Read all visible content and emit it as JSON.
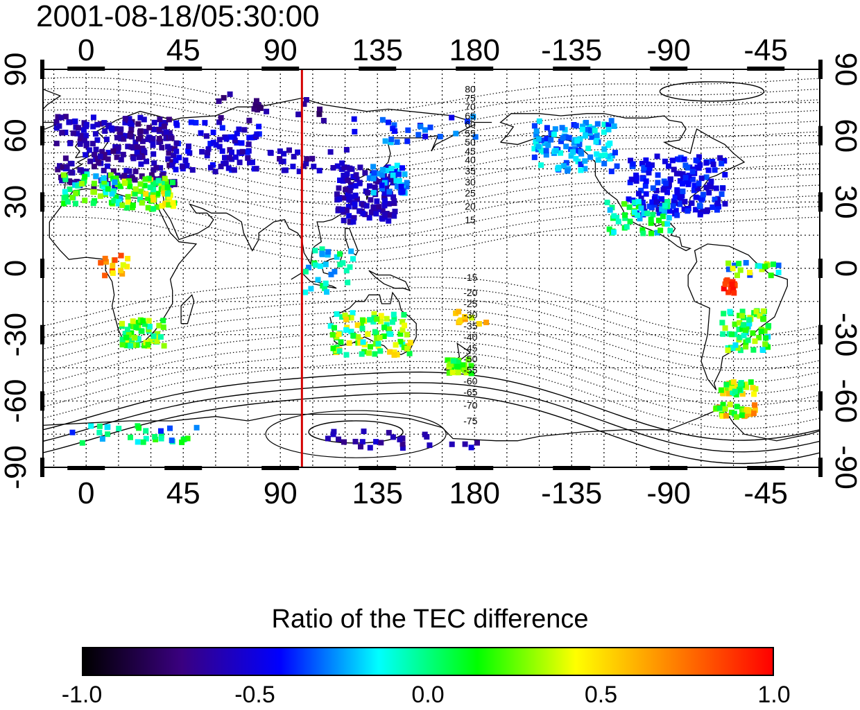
{
  "title": "2001-08-18/05:30:00",
  "map": {
    "lon_ticks": [
      "0",
      "45",
      "90",
      "135",
      "180",
      "-135",
      "-90",
      "-45"
    ],
    "lon_values": [
      0,
      45,
      90,
      135,
      180,
      225,
      270,
      315
    ],
    "lat_ticks": [
      "90",
      "60",
      "30",
      "0",
      "-30",
      "-60",
      "-90"
    ],
    "lat_values": [
      90,
      60,
      30,
      0,
      -30,
      -60,
      -90
    ],
    "lon_range": [
      -20,
      340
    ],
    "lat_range": [
      -90,
      90
    ],
    "grid": true,
    "terminator_lon": 100,
    "terminator_color": "#d40000",
    "contour_labels_north": [
      "80",
      "75",
      "70",
      "65",
      "60",
      "55",
      "50",
      "45",
      "40",
      "35",
      "30",
      "25",
      "20",
      "15"
    ],
    "contour_labels_south": [
      "-15",
      "-20",
      "-25",
      "-30",
      "-35",
      "-40",
      "-45",
      "-50",
      "-55",
      "-60",
      "-65",
      "-70",
      "-75"
    ]
  },
  "colorbar": {
    "label": "Ratio of the TEC difference",
    "ticks": [
      "-1.0",
      "-0.5",
      "0.0",
      "0.5",
      "1.0"
    ],
    "range": [
      -1.0,
      1.0
    ],
    "colors": [
      "#000000",
      "#3a0080",
      "#0000ff",
      "#00ffff",
      "#00ff00",
      "#ffff00",
      "#ff8000",
      "#ff0000"
    ]
  }
}
